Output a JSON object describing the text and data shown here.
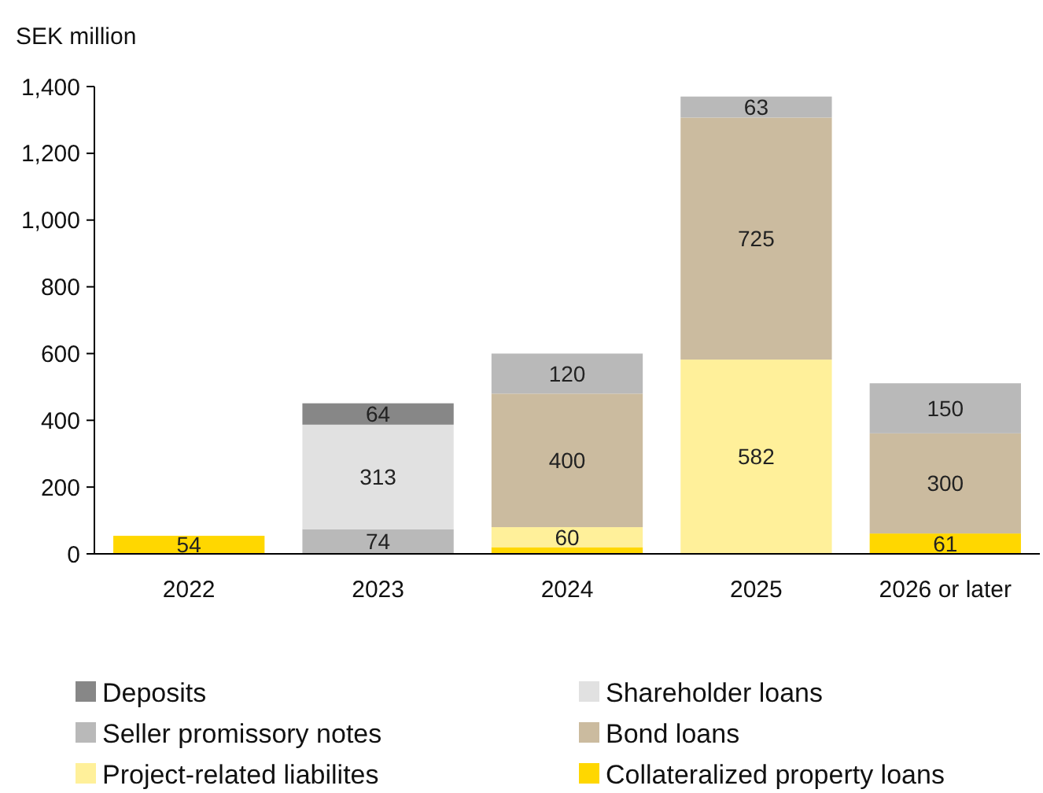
{
  "chart_data": {
    "type": "bar",
    "stacked": true,
    "ylabel": "SEK million",
    "categories": [
      "2022",
      "2023",
      "2024",
      "2025",
      "2026 or later"
    ],
    "series": [
      {
        "name": "Collateralized property loans",
        "color": "#ffd700",
        "values": [
          54,
          0,
          20,
          0,
          61
        ],
        "value_labels": [
          "54",
          null,
          null,
          null,
          "61"
        ]
      },
      {
        "name": "Project-related liabilites",
        "color": "#fff09a",
        "values": [
          0,
          0,
          60,
          582,
          0
        ],
        "value_labels": [
          null,
          null,
          "60",
          "582",
          null
        ]
      },
      {
        "name": "Bond loans",
        "color": "#cbbb9f",
        "values": [
          0,
          0,
          400,
          725,
          300
        ],
        "value_labels": [
          null,
          null,
          "400",
          "725",
          "300"
        ]
      },
      {
        "name": "Seller promissory notes",
        "color": "#b9b9b9",
        "values": [
          0,
          74,
          120,
          63,
          150
        ],
        "value_labels": [
          null,
          "74",
          "120",
          "63",
          "150"
        ]
      },
      {
        "name": "Shareholder loans",
        "color": "#e1e1e1",
        "values": [
          0,
          313,
          0,
          0,
          0
        ],
        "value_labels": [
          null,
          "313",
          null,
          null,
          null
        ]
      },
      {
        "name": "Deposits",
        "color": "#878787",
        "values": [
          0,
          64,
          0,
          0,
          0
        ],
        "value_labels": [
          null,
          "64",
          null,
          null,
          null
        ]
      }
    ],
    "ylim": [
      0,
      1400
    ],
    "yticks": [
      {
        "value": 0,
        "label": "0"
      },
      {
        "value": 200,
        "label": "200"
      },
      {
        "value": 400,
        "label": "400"
      },
      {
        "value": 600,
        "label": "600"
      },
      {
        "value": 800,
        "label": "800"
      },
      {
        "value": 1000,
        "label": "1,000"
      },
      {
        "value": 1200,
        "label": "1,200"
      },
      {
        "value": 1400,
        "label": "1,400"
      }
    ],
    "grid": false,
    "legend": "bottom"
  }
}
